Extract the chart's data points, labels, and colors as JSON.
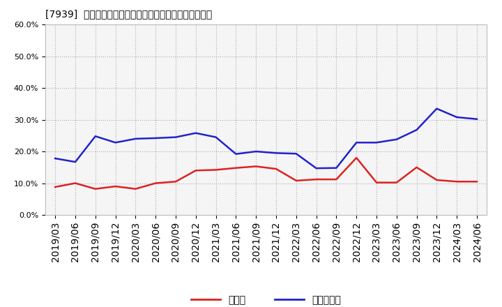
{
  "title": "[7939]  現預金、有利子負債の総資産に対する比率の推移",
  "x_labels": [
    "2019/03",
    "2019/06",
    "2019/09",
    "2019/12",
    "2020/03",
    "2020/06",
    "2020/09",
    "2020/12",
    "2021/03",
    "2021/06",
    "2021/09",
    "2021/12",
    "2022/03",
    "2022/06",
    "2022/09",
    "2022/12",
    "2023/03",
    "2023/06",
    "2023/09",
    "2023/12",
    "2024/03",
    "2024/06"
  ],
  "cash": [
    0.088,
    0.1,
    0.082,
    0.09,
    0.082,
    0.1,
    0.105,
    0.14,
    0.142,
    0.148,
    0.153,
    0.145,
    0.108,
    0.112,
    0.112,
    0.18,
    0.102,
    0.102,
    0.15,
    0.11,
    0.105,
    0.105
  ],
  "debt": [
    0.178,
    0.167,
    0.248,
    0.228,
    0.24,
    0.242,
    0.245,
    0.258,
    0.245,
    0.192,
    0.2,
    0.195,
    0.193,
    0.147,
    0.148,
    0.228,
    0.228,
    0.238,
    0.268,
    0.335,
    0.308,
    0.302
  ],
  "cash_color": "#dd2222",
  "debt_color": "#2222cc",
  "bg_color": "#ffffff",
  "plot_bg_color": "#f5f5f5",
  "grid_color": "#aaaaaa",
  "ylim": [
    0.0,
    0.6
  ],
  "yticks": [
    0.0,
    0.1,
    0.2,
    0.3,
    0.4,
    0.5,
    0.6
  ],
  "legend_cash": "現預金",
  "legend_debt": "有利子負債",
  "title_fontsize": 11,
  "tick_fontsize": 8,
  "legend_fontsize": 10
}
